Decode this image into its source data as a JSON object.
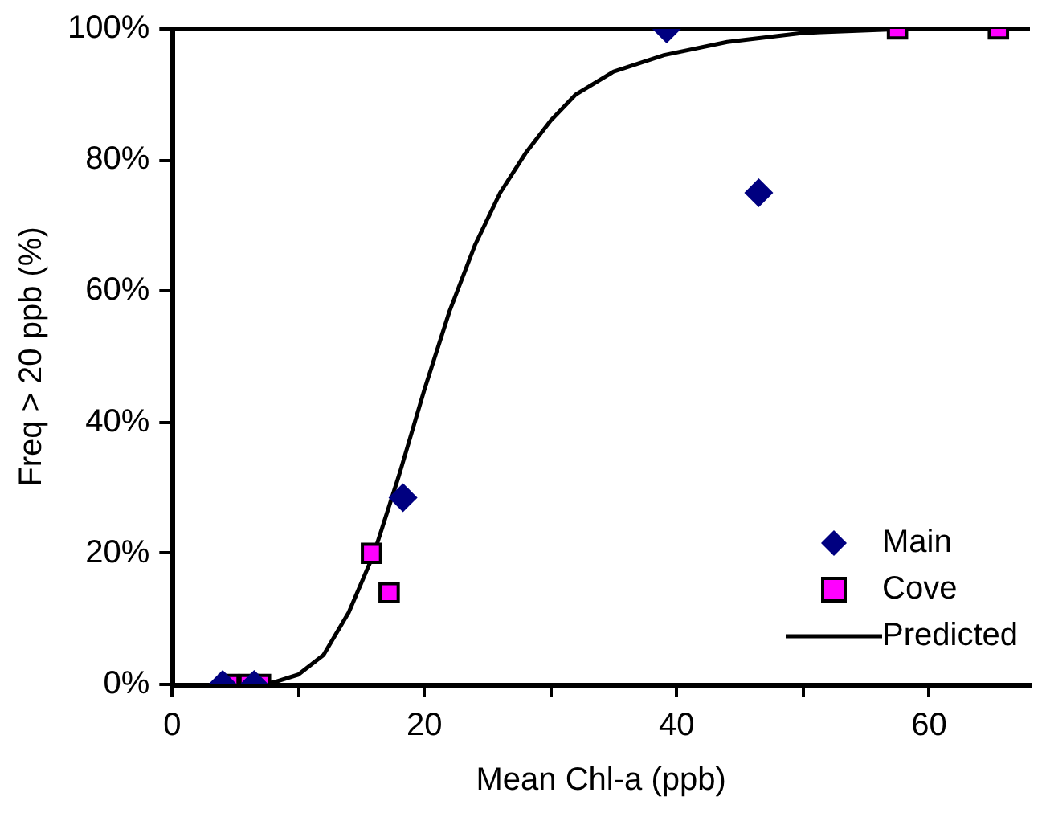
{
  "chart_data": {
    "type": "scatter",
    "xlabel": "Mean Chl-a (ppb)",
    "ylabel": "Freq > 20 ppb (%)",
    "xlim": [
      0,
      68
    ],
    "xticks": [
      0,
      {
        "value": 10,
        "label": null
      },
      20,
      {
        "value": 30,
        "label": null
      },
      40,
      {
        "value": 50,
        "label": null
      },
      60
    ],
    "ylim": [
      0,
      100
    ],
    "yticks": [
      {
        "value": 0,
        "label": "0%"
      },
      {
        "value": 20,
        "label": "20%"
      },
      {
        "value": 40,
        "label": "40%"
      },
      {
        "value": 60,
        "label": "60%"
      },
      {
        "value": 80,
        "label": "80%"
      },
      {
        "value": 100,
        "label": "100%"
      }
    ],
    "grid": false,
    "legend": "bottom right",
    "ref_lines": [
      {
        "axis": "y",
        "value": 100,
        "color": "#000000"
      }
    ],
    "series": [
      {
        "name": "Main",
        "type": "scatter",
        "marker": "diamond",
        "color": "#000080",
        "x": [
          4,
          6.5,
          18.3,
          39.2,
          46.5
        ],
        "values": [
          0,
          0,
          28.5,
          100,
          75
        ]
      },
      {
        "name": "Cove",
        "type": "scatter",
        "marker": "square",
        "color": "#ff00ff",
        "x": [
          4.5,
          6.1,
          7,
          15.8,
          17.2,
          57.5,
          65.5
        ],
        "values": [
          0,
          0,
          0,
          20,
          14,
          100,
          100
        ]
      },
      {
        "name": "Predicted",
        "type": "line",
        "marker": "none",
        "line_style": "solid",
        "color": "#000000",
        "x": [
          5,
          8,
          10,
          12,
          14,
          16,
          18,
          20,
          22,
          24,
          26,
          28,
          30,
          32,
          35,
          39,
          44,
          50,
          58,
          68
        ],
        "values": [
          0,
          0.3,
          1.5,
          4.5,
          11,
          20,
          32,
          45,
          57,
          67,
          75,
          81,
          86,
          90,
          93.5,
          96,
          98,
          99.4,
          100,
          100
        ]
      }
    ]
  }
}
